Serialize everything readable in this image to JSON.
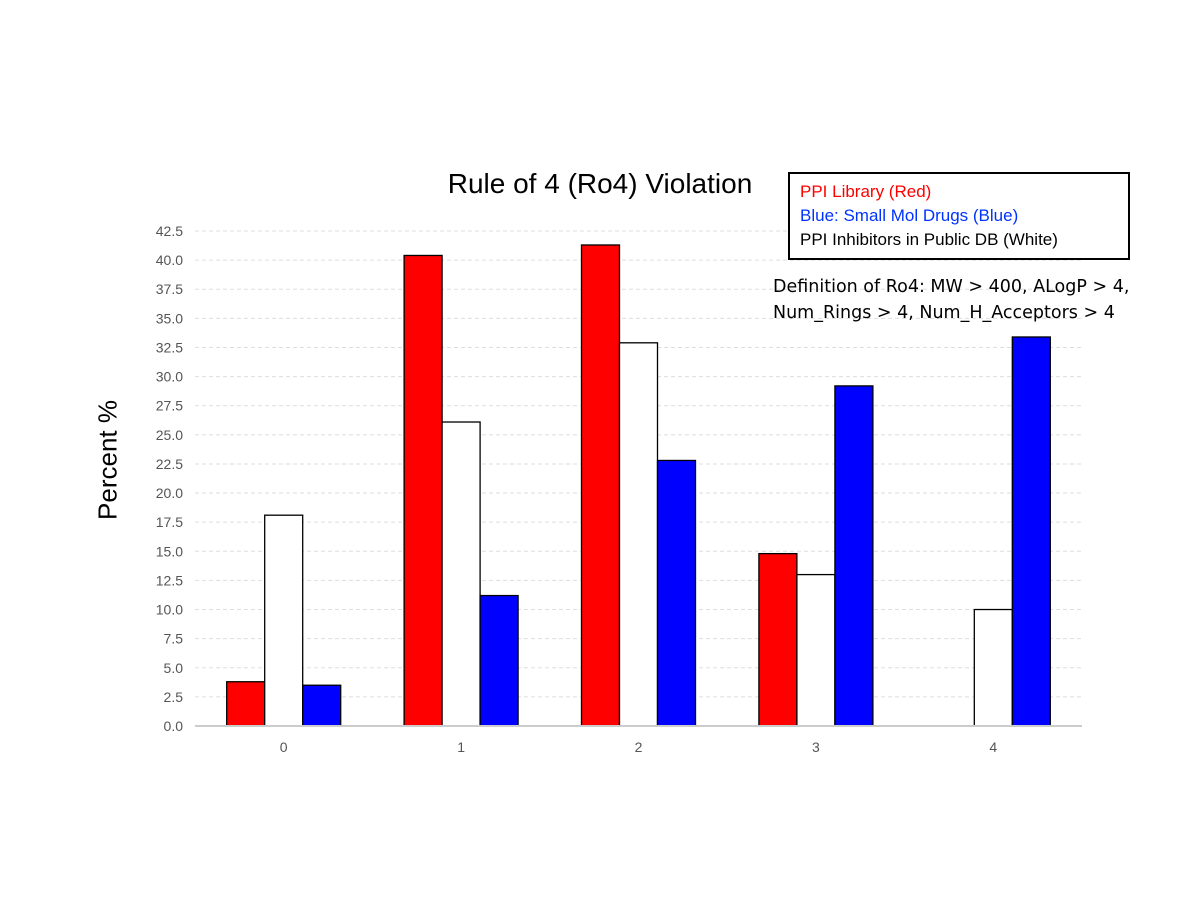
{
  "chart_data": {
    "type": "bar",
    "title": "Rule of 4 (Ro4) Violation",
    "xlabel": "",
    "ylabel": "Percent %",
    "categories": [
      "0",
      "1",
      "2",
      "3",
      "4"
    ],
    "ylim": [
      0,
      42.5
    ],
    "yticks": [
      "0.0",
      "2.5",
      "5.0",
      "7.5",
      "10.0",
      "12.5",
      "15.0",
      "17.5",
      "20.0",
      "22.5",
      "25.0",
      "27.5",
      "30.0",
      "32.5",
      "35.0",
      "37.5",
      "40.0",
      "42.5"
    ],
    "grid": "horizontal dashed",
    "legend_placement": "top-right",
    "series": [
      {
        "name": "PPI Library (Red)",
        "color": "#ff0000",
        "values": [
          3.8,
          40.4,
          41.3,
          14.8,
          0
        ]
      },
      {
        "name": "PPI Inhibitors in Public DB (White)",
        "color": "#ffffff",
        "values": [
          18.1,
          26.1,
          32.9,
          13.0,
          10.0
        ]
      },
      {
        "name": "Blue: Small Mol Drugs (Blue)",
        "color": "#0000ff",
        "values": [
          3.5,
          11.2,
          22.8,
          29.2,
          33.4
        ]
      }
    ]
  },
  "legend": {
    "items": [
      {
        "label": "PPI Library (Red)",
        "color": "#ff0000"
      },
      {
        "label": "Blue: Small Mol Drugs (Blue)",
        "color": "#0033ff"
      },
      {
        "label": "PPI Inhibitors in Public DB (White)",
        "color": "#000000"
      }
    ]
  },
  "annotation": {
    "line1": "Definition of Ro4: MW > 400, ALogP > 4,",
    "line2": "Num_Rings > 4, Num_H_Acceptors > 4"
  }
}
